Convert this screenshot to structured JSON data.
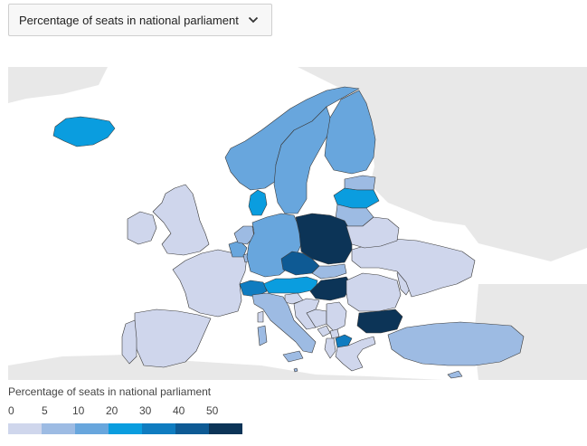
{
  "indicator_select": {
    "selected": "Percentage of seats in national parliament"
  },
  "legend": {
    "title": "Percentage of seats in national parliament",
    "ticks": [
      "0",
      "5",
      "10",
      "20",
      "30",
      "40",
      "50"
    ],
    "colors": [
      "#cfd6ec",
      "#9dbbe3",
      "#68a6dd",
      "#0a9ddf",
      "#0f7cc0",
      "#0e5a94",
      "#0c3457"
    ]
  },
  "map_colors": {
    "sea": "#ffffff",
    "nodata_land": "#e8e8e8",
    "borders": "#3a3a3a"
  },
  "countries": [
    {
      "id": "iceland",
      "class": 3
    },
    {
      "id": "norway",
      "class": 2
    },
    {
      "id": "sweden",
      "class": 2
    },
    {
      "id": "finland",
      "class": 2
    },
    {
      "id": "estonia",
      "class": 1
    },
    {
      "id": "latvia",
      "class": 3
    },
    {
      "id": "lithuania",
      "class": 1
    },
    {
      "id": "denmark",
      "class": 3
    },
    {
      "id": "uk",
      "class": 0
    },
    {
      "id": "ireland",
      "class": 0
    },
    {
      "id": "france",
      "class": 0
    },
    {
      "id": "spain",
      "class": 0
    },
    {
      "id": "portugal",
      "class": 0
    },
    {
      "id": "belgium",
      "class": 2
    },
    {
      "id": "netherlands",
      "class": 1
    },
    {
      "id": "luxembourg",
      "class": 1
    },
    {
      "id": "germany",
      "class": 2
    },
    {
      "id": "poland",
      "class": 6
    },
    {
      "id": "czechia",
      "class": 5
    },
    {
      "id": "slovakia",
      "class": 1
    },
    {
      "id": "austria",
      "class": 3
    },
    {
      "id": "switzerland",
      "class": 4
    },
    {
      "id": "hungary",
      "class": 6
    },
    {
      "id": "slovenia",
      "class": 0
    },
    {
      "id": "croatia",
      "class": 0
    },
    {
      "id": "bosnia",
      "class": 0
    },
    {
      "id": "serbia",
      "class": 0
    },
    {
      "id": "montenegro",
      "class": 0
    },
    {
      "id": "albania",
      "class": 0
    },
    {
      "id": "north-macedonia",
      "class": 4
    },
    {
      "id": "kosovo",
      "class": 0
    },
    {
      "id": "romania",
      "class": 0
    },
    {
      "id": "moldova",
      "class": 0
    },
    {
      "id": "bulgaria",
      "class": 6
    },
    {
      "id": "greece",
      "class": 0
    },
    {
      "id": "turkey",
      "class": 1
    },
    {
      "id": "italy",
      "class": 1
    },
    {
      "id": "sardinia",
      "class": 1
    },
    {
      "id": "sicily",
      "class": 1
    },
    {
      "id": "corsica",
      "class": 0
    },
    {
      "id": "cyprus",
      "class": 1
    },
    {
      "id": "ukraine",
      "class": 0
    },
    {
      "id": "belarus",
      "class": 0
    },
    {
      "id": "malta",
      "class": 1
    }
  ]
}
